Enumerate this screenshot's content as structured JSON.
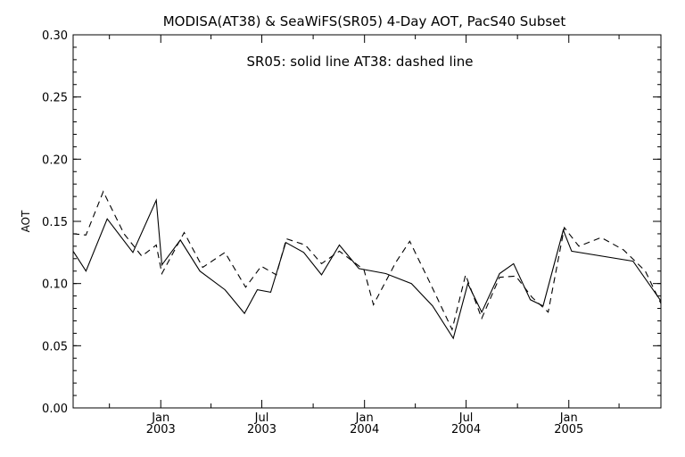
{
  "chart_data": {
    "type": "line",
    "title": "MODISA(AT38) & SeaWiFS(SR05) 4-Day AOT, PacS40 Subset",
    "annotation": "SR05: solid line   AT38: dashed line",
    "ylabel": "AOT",
    "xlabel": "",
    "ylim": [
      0.0,
      0.3
    ],
    "xlim": [
      "2002-07-28",
      "2005-06-15"
    ],
    "yticks": [
      {
        "value": 0.0,
        "label": "0.00"
      },
      {
        "value": 0.05,
        "label": "0.05"
      },
      {
        "value": 0.1,
        "label": "0.10"
      },
      {
        "value": 0.15,
        "label": "0.15"
      },
      {
        "value": 0.2,
        "label": "0.20"
      },
      {
        "value": 0.25,
        "label": "0.25"
      },
      {
        "value": 0.3,
        "label": "0.30"
      }
    ],
    "xticks": [
      {
        "date": "2003-01-01",
        "month": "Jan",
        "year": "2003"
      },
      {
        "date": "2003-07-01",
        "month": "Jul",
        "year": "2003"
      },
      {
        "date": "2004-01-01",
        "month": "Jan",
        "year": "2004"
      },
      {
        "date": "2004-07-01",
        "month": "Jul",
        "year": "2004"
      },
      {
        "date": "2005-01-01",
        "month": "Jan",
        "year": "2005"
      }
    ],
    "minor_xticks": [
      "2002-10-01",
      "2003-04-01",
      "2003-10-01",
      "2004-04-01",
      "2004-10-01",
      "2005-04-01"
    ],
    "grid": false,
    "series": [
      {
        "name": "SR05",
        "style": "solid",
        "color": "#000000",
        "points": [
          [
            "2002-07-28",
            0.126
          ],
          [
            "2002-08-20",
            0.11
          ],
          [
            "2002-09-27",
            0.152
          ],
          [
            "2002-11-12",
            0.125
          ],
          [
            "2002-12-24",
            0.167
          ],
          [
            "2003-01-03",
            0.115
          ],
          [
            "2003-02-05",
            0.135
          ],
          [
            "2003-03-12",
            0.11
          ],
          [
            "2003-04-26",
            0.095
          ],
          [
            "2003-05-31",
            0.076
          ],
          [
            "2003-06-23",
            0.095
          ],
          [
            "2003-07-17",
            0.093
          ],
          [
            "2003-08-13",
            0.133
          ],
          [
            "2003-09-14",
            0.125
          ],
          [
            "2003-10-16",
            0.107
          ],
          [
            "2003-11-17",
            0.131
          ],
          [
            "2003-12-22",
            0.112
          ],
          [
            "2004-02-08",
            0.108
          ],
          [
            "2004-03-25",
            0.1
          ],
          [
            "2004-05-02",
            0.082
          ],
          [
            "2004-06-08",
            0.056
          ],
          [
            "2004-07-04",
            0.1
          ],
          [
            "2004-07-29",
            0.077
          ],
          [
            "2004-08-30",
            0.108
          ],
          [
            "2004-09-24",
            0.116
          ],
          [
            "2004-10-24",
            0.087
          ],
          [
            "2004-11-16",
            0.082
          ],
          [
            "2004-12-22",
            0.143
          ],
          [
            "2005-01-06",
            0.126
          ],
          [
            "2005-04-26",
            0.118
          ],
          [
            "2005-06-15",
            0.086
          ]
        ]
      },
      {
        "name": "AT38",
        "style": "dashed",
        "color": "#000000",
        "points": [
          [
            "2002-07-28",
            0.14
          ],
          [
            "2002-08-20",
            0.139
          ],
          [
            "2002-09-20",
            0.174
          ],
          [
            "2002-10-27",
            0.14
          ],
          [
            "2002-11-28",
            0.122
          ],
          [
            "2002-12-24",
            0.131
          ],
          [
            "2003-01-03",
            0.108
          ],
          [
            "2003-02-12",
            0.141
          ],
          [
            "2003-03-17",
            0.113
          ],
          [
            "2003-04-26",
            0.125
          ],
          [
            "2003-06-02",
            0.097
          ],
          [
            "2003-06-30",
            0.114
          ],
          [
            "2003-07-27",
            0.107
          ],
          [
            "2003-08-14",
            0.136
          ],
          [
            "2003-09-17",
            0.131
          ],
          [
            "2003-10-16",
            0.116
          ],
          [
            "2003-11-17",
            0.126
          ],
          [
            "2003-12-31",
            0.111
          ],
          [
            "2004-01-17",
            0.083
          ],
          [
            "2004-02-26",
            0.117
          ],
          [
            "2004-03-22",
            0.134
          ],
          [
            "2004-04-28",
            0.1
          ],
          [
            "2004-06-06",
            0.063
          ],
          [
            "2004-06-30",
            0.107
          ],
          [
            "2004-07-29",
            0.072
          ],
          [
            "2004-08-30",
            0.105
          ],
          [
            "2004-09-28",
            0.106
          ],
          [
            "2004-10-27",
            0.089
          ],
          [
            "2004-11-25",
            0.077
          ],
          [
            "2004-12-24",
            0.145
          ],
          [
            "2005-01-19",
            0.13
          ],
          [
            "2005-02-28",
            0.137
          ],
          [
            "2005-04-09",
            0.127
          ],
          [
            "2005-05-18",
            0.11
          ],
          [
            "2005-06-15",
            0.084
          ]
        ]
      }
    ]
  }
}
